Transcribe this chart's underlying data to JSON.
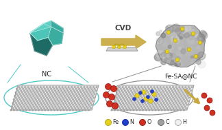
{
  "bg_color": "#ffffff",
  "nc_label": "NC",
  "fesa_label": "Fe-SA@NC",
  "cvd_label": "CVD",
  "arrow_color": "#C8A840",
  "teal_light": "#4DC4B8",
  "teal_mid": "#3AADA0",
  "teal_dark": "#2A8880",
  "teal_darker": "#1E6B65",
  "teal_top": "#5ECFC3",
  "ellipse_left_color": "#50C8C8",
  "ellipse_right_color": "#909090",
  "fe_atom_color": "#E8D020",
  "fe_atom_edge": "#B0A000",
  "n_atom_color": "#2040C8",
  "n_atom_edge": "#1020A0",
  "o_atom_color": "#D03020",
  "o_atom_edge": "#901010",
  "c_atom_color": "#A0A0A0",
  "c_atom_edge": "#606060",
  "h_atom_color": "#F0F0F0",
  "h_atom_edge": "#A0A0A0",
  "graphene_fill": "#DEDEDE",
  "graphene_line": "#A8A8A8",
  "graphene_node": "#B0B0B0",
  "rock_base": "#B5B5B5",
  "rock_dark": "#909090",
  "rock_light": "#D0D0D0",
  "legend_items": [
    {
      "label": "Fe",
      "color": "#E8D020",
      "edge": "#B0A000"
    },
    {
      "label": "N",
      "color": "#2040C8",
      "edge": "#1020A0"
    },
    {
      "label": "O",
      "color": "#D03020",
      "edge": "#901010"
    },
    {
      "label": "C",
      "color": "#A0A0A0",
      "edge": "#606060"
    },
    {
      "label": "H",
      "color": "#F0F0F0",
      "edge": "#A0A0A0"
    }
  ]
}
